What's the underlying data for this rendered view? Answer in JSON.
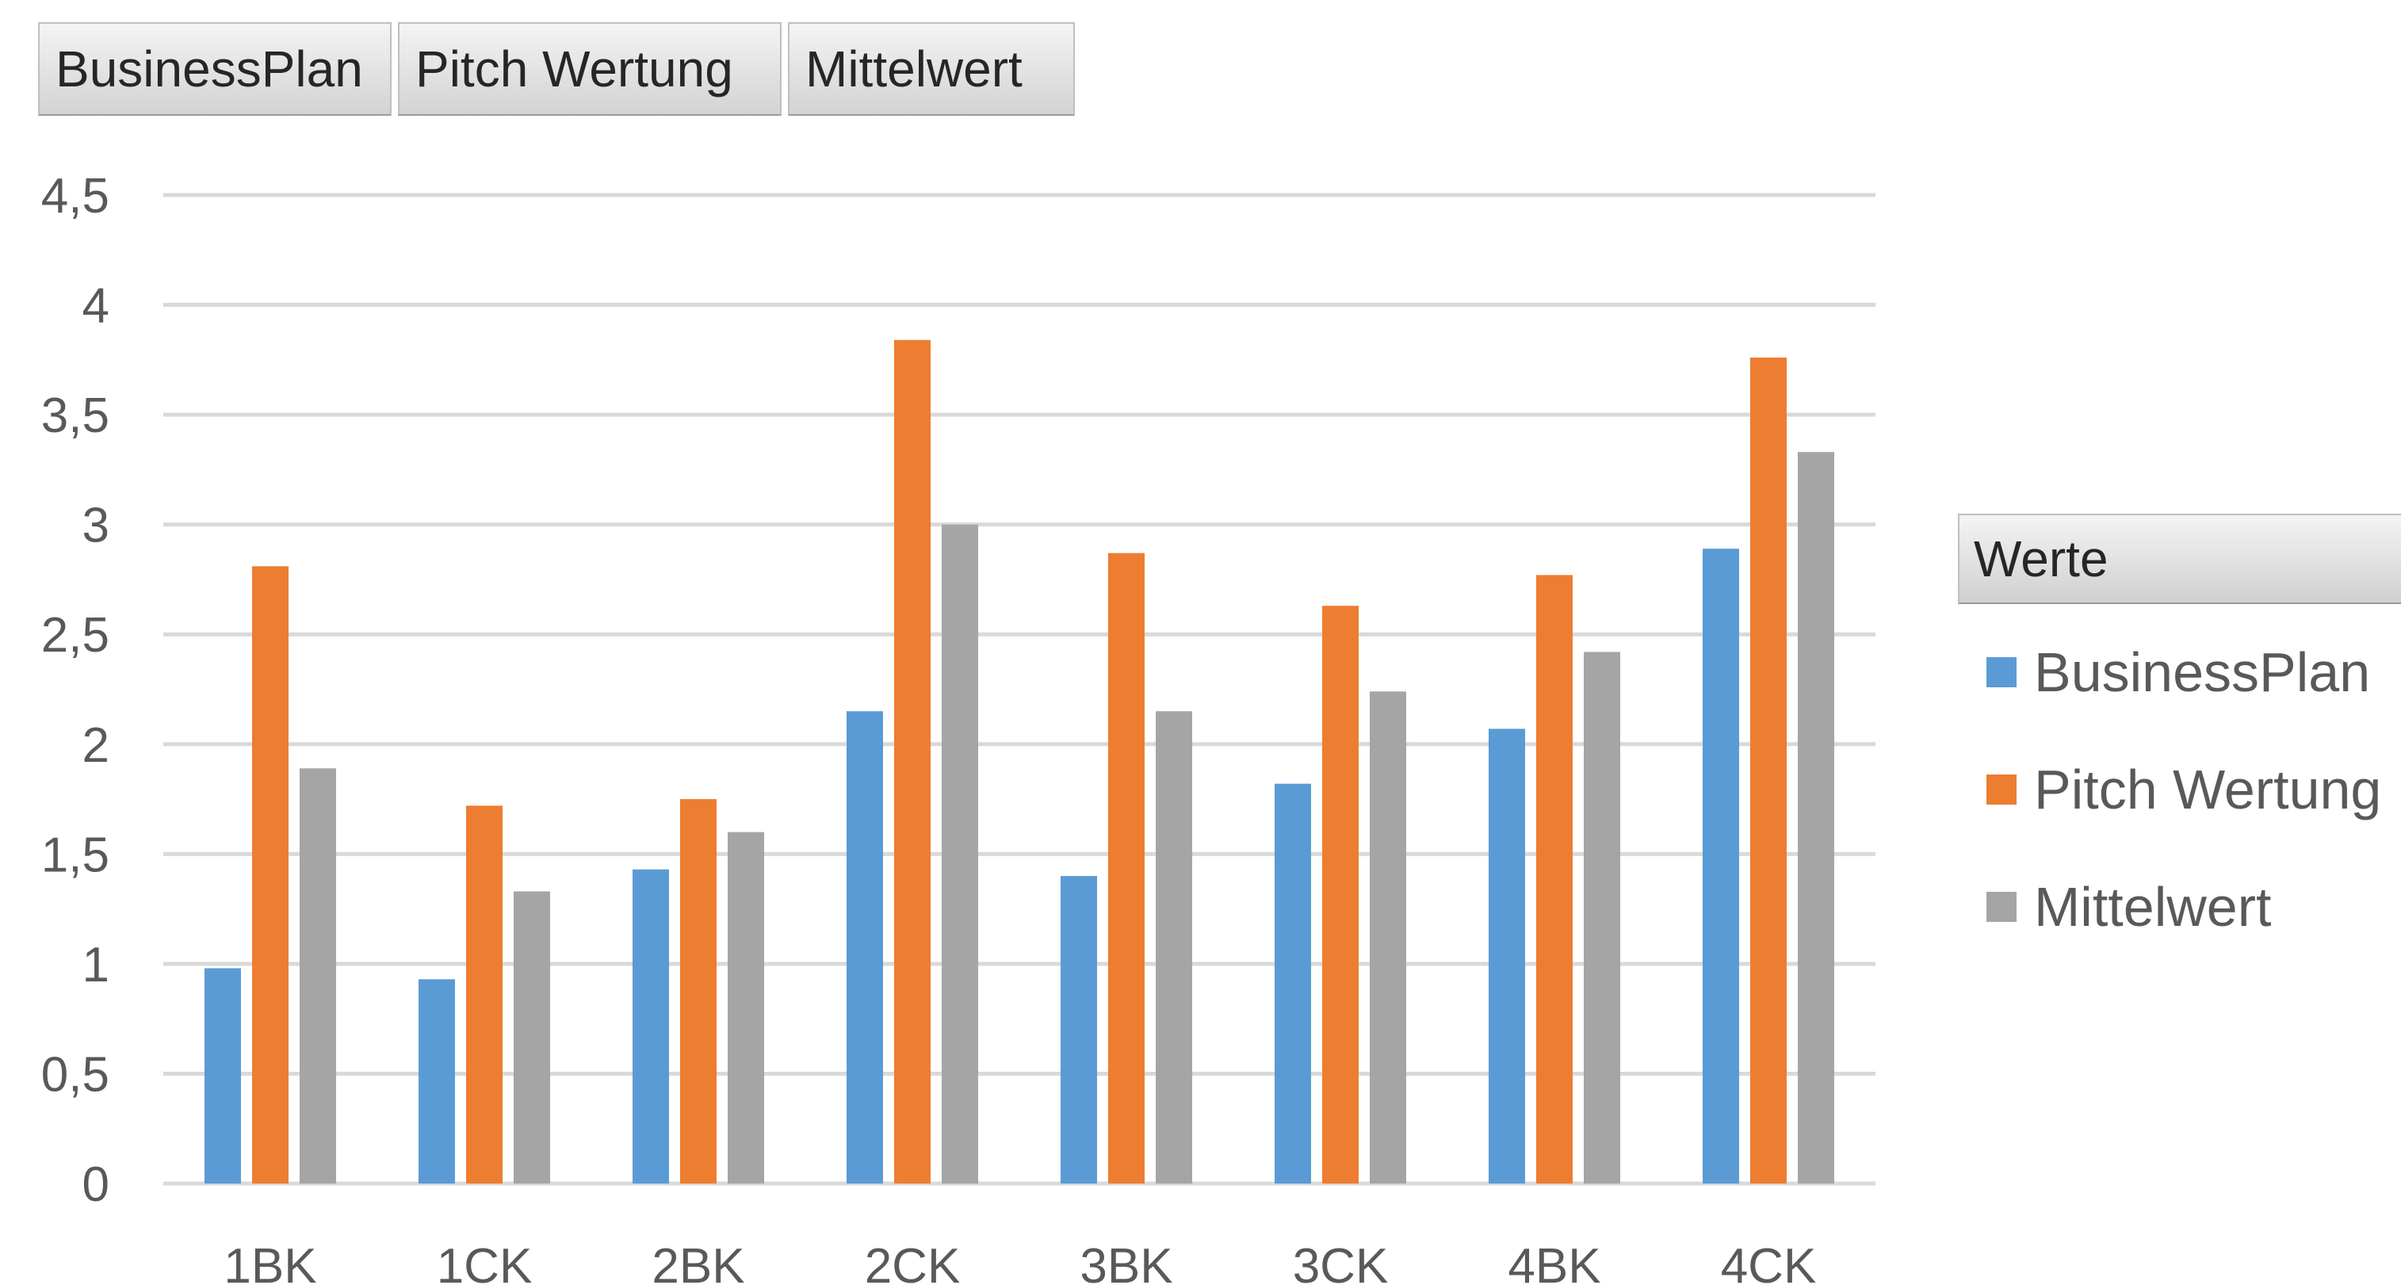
{
  "pivot_buttons": [
    "BusinessPlan",
    "Pitch Wertung",
    "Mittelwert"
  ],
  "legend": {
    "title": "Werte",
    "items": [
      {
        "label": "BusinessPlan",
        "color": "#5b9bd5"
      },
      {
        "label": "Pitch Wertung",
        "color": "#ed7d31"
      },
      {
        "label": "Mittelwert",
        "color": "#a5a5a5"
      }
    ]
  },
  "chart_data": {
    "type": "bar",
    "title": "",
    "xlabel": "",
    "ylabel": "",
    "categories": [
      "1BK",
      "1CK",
      "2BK",
      "2CK",
      "3BK",
      "3CK",
      "4BK",
      "4CK"
    ],
    "series": [
      {
        "name": "BusinessPlan",
        "color": "#5b9bd5",
        "values": [
          0.98,
          0.93,
          1.43,
          2.15,
          1.4,
          1.82,
          2.07,
          2.89
        ]
      },
      {
        "name": "Pitch Wertung",
        "color": "#ed7d31",
        "values": [
          2.81,
          1.72,
          1.75,
          3.84,
          2.87,
          2.63,
          2.77,
          3.76
        ]
      },
      {
        "name": "Mittelwert",
        "color": "#a5a5a5",
        "values": [
          1.89,
          1.33,
          1.6,
          3.0,
          2.15,
          2.24,
          2.42,
          3.33
        ]
      }
    ],
    "ylim": [
      0,
      4.5
    ],
    "yticks": [
      0,
      0.5,
      1,
      1.5,
      2,
      2.5,
      3,
      3.5,
      4,
      4.5
    ],
    "ytick_labels": [
      "0",
      "0,5",
      "1",
      "1,5",
      "2",
      "2,5",
      "3",
      "3,5",
      "4",
      "4,5"
    ],
    "grid": true,
    "legend_position": "right"
  }
}
